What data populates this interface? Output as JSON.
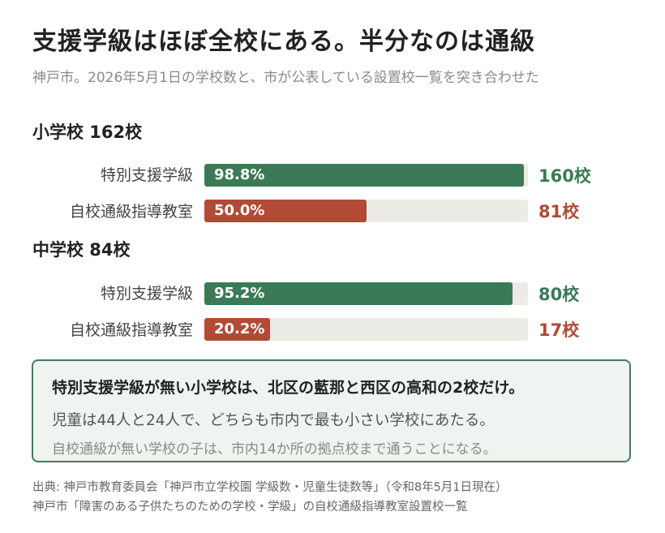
{
  "header": {
    "title": "支援学級はほぼ全校にある。半分なのは通級",
    "subtitle": "神戸市。2026年5月1日の学校数と、市が公表している設置校一覧を突き合わせた"
  },
  "colors": {
    "special_class": "#3b7a57",
    "resource_room": "#b24a35",
    "track": "#edebe6"
  },
  "chart_data": [
    {
      "type": "bar",
      "title": "小学校 162校",
      "orientation": "horizontal",
      "xlim": [
        0,
        100
      ],
      "categories": [
        "特別支援学級",
        "自校通級指導教室"
      ],
      "values": [
        98.8,
        50.0
      ],
      "labels": [
        "98.8%",
        "50.0%"
      ],
      "counts": [
        "160校",
        "81校"
      ]
    },
    {
      "type": "bar",
      "title": "中学校 84校",
      "orientation": "horizontal",
      "xlim": [
        0,
        100
      ],
      "categories": [
        "特別支援学級",
        "自校通級指導教室"
      ],
      "values": [
        95.2,
        20.2
      ],
      "labels": [
        "95.2%",
        "20.2%"
      ],
      "counts": [
        "80校",
        "17校"
      ]
    }
  ],
  "note": {
    "headline": "特別支援学級が無い小学校は、北区の藍那と西区の高和の2校だけ。",
    "body": "児童は44人と24人で、どちらも市内で最も小さい学校にあたる。",
    "sub": "自校通級が無い学校の子は、市内14か所の拠点校まで通うことになる。"
  },
  "source": {
    "line1": "出典: 神戸市教育委員会「神戸市立学校園 学級数・児童生徒数等」（令和8年5月1日現在）",
    "line2": "神戸市「障害のある子供たちのための学校・学級」の自校通級指導教室設置校一覧"
  }
}
